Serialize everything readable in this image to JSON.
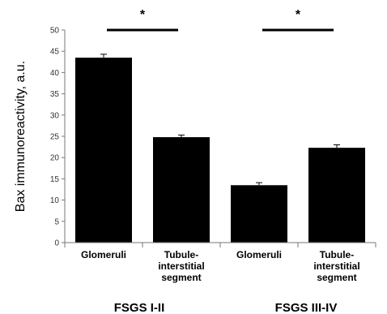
{
  "chart_data": {
    "type": "bar",
    "ylabel": "Bax immunoreactivity, a.u.",
    "ylim": [
      0,
      50
    ],
    "yticks": [
      0,
      5,
      10,
      15,
      20,
      25,
      30,
      35,
      40,
      45,
      50
    ],
    "categories": [
      [
        "Glomeruli"
      ],
      [
        "Tubule-",
        "interstitial",
        "segment"
      ],
      [
        "Glomeruli"
      ],
      [
        "Tubule-",
        "interstitial",
        "segment"
      ]
    ],
    "values": [
      43.5,
      24.8,
      13.5,
      22.3
    ],
    "errors": [
      0.8,
      0.5,
      0.6,
      0.7
    ],
    "groups": [
      "FSGS I-II",
      "FSGS III-IV"
    ],
    "significance": [
      {
        "from": 0,
        "to": 1,
        "label": "*"
      },
      {
        "from": 2,
        "to": 3,
        "label": "*"
      }
    ],
    "bar_color": "#000000",
    "grid": false
  }
}
